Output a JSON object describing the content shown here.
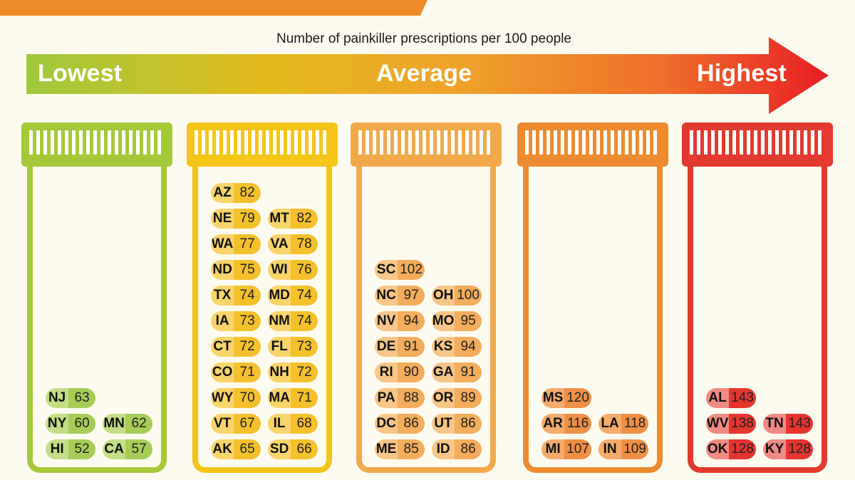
{
  "header": {
    "subtitle": "Number of painkiller prescriptions per 100 people",
    "scale_low": "Lowest",
    "scale_avg": "Average",
    "scale_high": "Highest"
  },
  "colors": {
    "band": "#ef8a2a",
    "jars": [
      "#a6c93a",
      "#f5c419",
      "#f2a94a",
      "#ec8b2f",
      "#e23a2e"
    ]
  },
  "chart_data": {
    "type": "table",
    "title": "",
    "groups": [
      {
        "rows": [
          [
            "NJ",
            63
          ],
          [
            "NY",
            60,
            "MN",
            62
          ],
          [
            "HI",
            52,
            "CA",
            57
          ]
        ]
      },
      {
        "rows": [
          [
            "AZ",
            82
          ],
          [
            "NE",
            79,
            "MT",
            82
          ],
          [
            "WA",
            77,
            "VA",
            78
          ],
          [
            "ND",
            75,
            "WI",
            76
          ],
          [
            "TX",
            74,
            "MD",
            74
          ],
          [
            "IA",
            73,
            "NM",
            74
          ],
          [
            "CT",
            72,
            "FL",
            73
          ],
          [
            "CO",
            71,
            "NH",
            72
          ],
          [
            "WY",
            70,
            "MA",
            71
          ],
          [
            "VT",
            67,
            "IL",
            68
          ],
          [
            "AK",
            65,
            "SD",
            66
          ]
        ]
      },
      {
        "rows": [
          [
            "SC",
            102
          ],
          [
            "NC",
            97,
            "OH",
            100
          ],
          [
            "NV",
            94,
            "MO",
            95
          ],
          [
            "DE",
            91,
            "KS",
            94
          ],
          [
            "RI",
            90,
            "GA",
            91
          ],
          [
            "PA",
            88,
            "OR",
            89
          ],
          [
            "DC",
            86,
            "UT",
            86
          ],
          [
            "ME",
            85,
            "ID",
            86
          ]
        ]
      },
      {
        "rows": [
          [
            "MS",
            120
          ],
          [
            "AR",
            116,
            "LA",
            118
          ],
          [
            "MI",
            107,
            "IN",
            109
          ]
        ]
      },
      {
        "rows": [
          [
            "AL",
            143
          ],
          [
            "WV",
            138,
            "TN",
            143
          ],
          [
            "OK",
            128,
            "KY",
            128
          ]
        ]
      }
    ]
  }
}
